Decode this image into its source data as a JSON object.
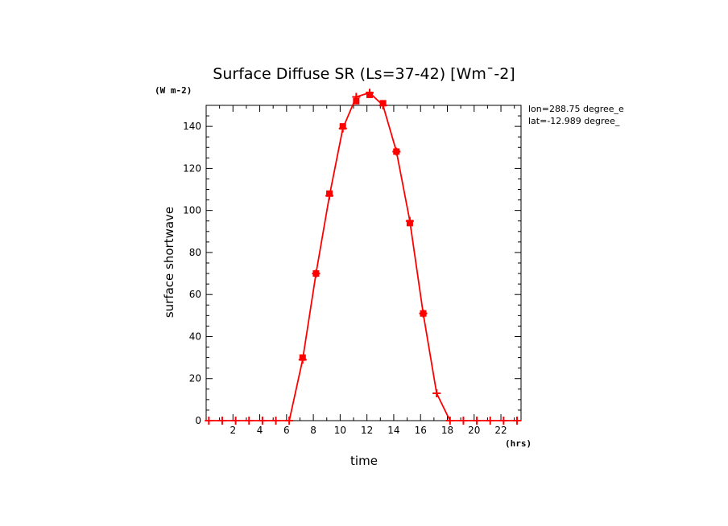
{
  "chart_data": {
    "type": "line",
    "title": "Surface Diffuse SR (Ls=37-42) [Wm¯-2]",
    "ylabel": "surface shortwave",
    "xlabel": "time",
    "y_unit": "(W m-2)",
    "x_unit": "(hrs)",
    "annotations": [
      "lon=288.75 degree_e",
      "lat=-12.989 degree_"
    ],
    "xlim": [
      0,
      23.5
    ],
    "ylim": [
      0,
      150
    ],
    "x_ticks": [
      2,
      4,
      6,
      8,
      10,
      12,
      14,
      16,
      18,
      20,
      22
    ],
    "y_ticks": [
      0,
      20,
      40,
      60,
      80,
      100,
      120,
      140
    ],
    "grid": false,
    "color": "#ff0000",
    "series": [
      {
        "x": [
          0.2,
          1.2,
          2.2,
          3.2,
          4.2,
          5.2,
          6.2,
          7.2,
          8.2,
          9.2,
          10.2,
          11.2,
          12.2,
          13.2,
          14.2,
          15.2,
          16.2,
          17.2,
          18.2,
          19.2,
          20.2,
          21.2,
          22.2,
          23.2
        ],
        "y": [
          0,
          0,
          0,
          0,
          0,
          0,
          0,
          29,
          70,
          107,
          139,
          154,
          156,
          150,
          128,
          95,
          51,
          13,
          0,
          0,
          0,
          0,
          0,
          0
        ]
      },
      {
        "x": [
          7.2,
          8.2,
          9.2,
          10.2,
          11.2,
          12.2,
          13.2,
          14.2,
          15.2,
          16.2
        ],
        "y": [
          30,
          70,
          108,
          140,
          152,
          155,
          151,
          128,
          94,
          51
        ]
      }
    ]
  }
}
